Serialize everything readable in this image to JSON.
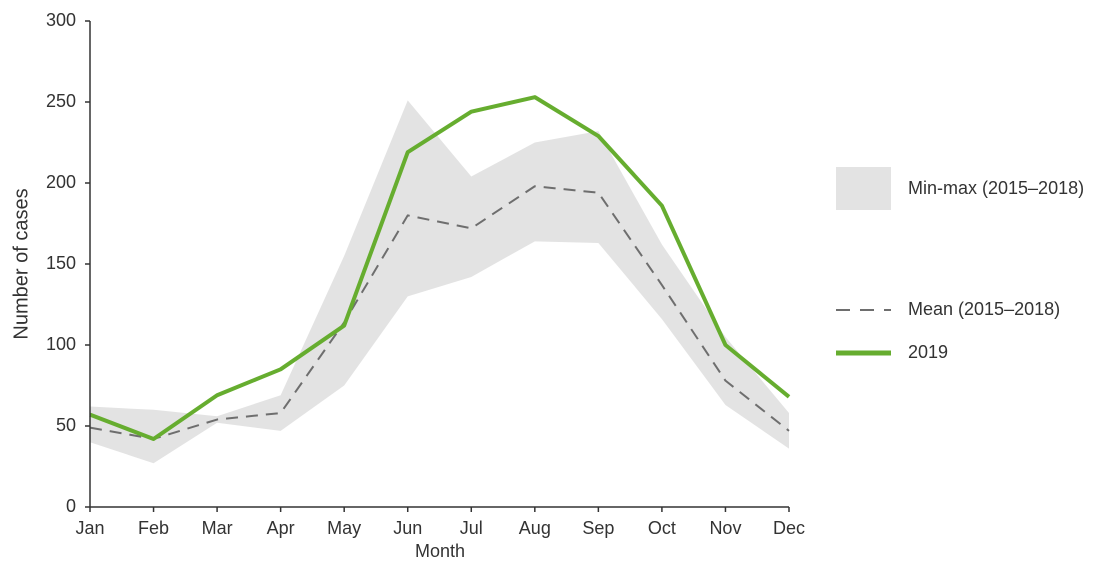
{
  "chart_data": {
    "type": "line",
    "x_label": "Month",
    "y_label": "Number of cases",
    "categories": [
      "Jan",
      "Feb",
      "Mar",
      "Apr",
      "May",
      "Jun",
      "Jul",
      "Aug",
      "Sep",
      "Oct",
      "Nov",
      "Dec"
    ],
    "ylim": [
      0,
      300
    ],
    "yticks": [
      0,
      50,
      100,
      150,
      200,
      250,
      300
    ],
    "series": [
      {
        "name": "Min-max (2015–2018)",
        "color": "#e3e3e3",
        "style": "band",
        "lower": [
          40,
          27,
          52,
          47,
          75,
          130,
          142,
          164,
          163,
          116,
          63,
          36
        ],
        "upper": [
          62,
          60,
          56,
          69,
          155,
          251,
          204,
          225,
          232,
          162,
          105,
          58
        ]
      },
      {
        "name": "Mean (2015–2018)",
        "color": "#6e6e6e",
        "style": "dashed",
        "values": [
          49,
          42,
          54,
          58,
          114,
          180,
          172,
          198,
          194,
          137,
          78,
          47
        ]
      },
      {
        "name": "2019",
        "color": "#66ad2f",
        "style": "solid",
        "values": [
          57,
          42,
          69,
          85,
          112,
          219,
          244,
          253,
          229,
          186,
          100,
          68
        ]
      }
    ]
  }
}
